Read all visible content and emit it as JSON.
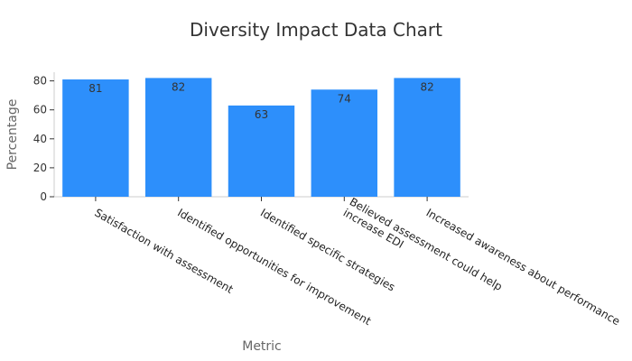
{
  "chart_data": {
    "type": "bar",
    "title": "Diversity Impact Data Chart",
    "xlabel": "Metric",
    "ylabel": "Percentage",
    "categories": [
      [
        "Satisfaction with assessment"
      ],
      [
        "Identified opportunities for improvement"
      ],
      [
        "Identified specific strategies"
      ],
      [
        "Believed assessment could help",
        "increase EDI"
      ],
      [
        "Increased awareness about performance"
      ]
    ],
    "values": [
      81,
      82,
      63,
      74,
      82
    ],
    "ylim": [
      0,
      86
    ],
    "yticks": [
      0,
      20,
      40,
      60,
      80
    ],
    "grid": false,
    "bar_color": "#2d8ffb",
    "show_data_labels": true
  }
}
